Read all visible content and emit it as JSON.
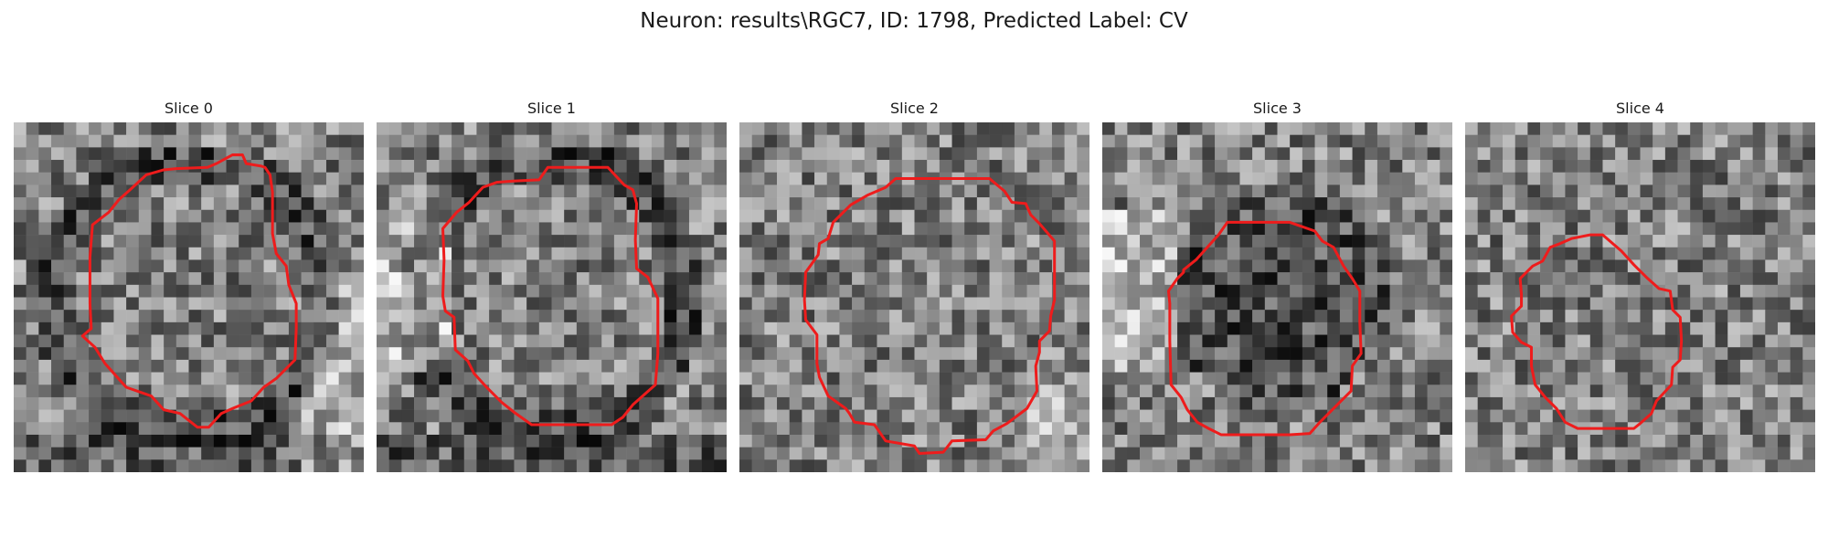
{
  "figure": {
    "title": "Neuron: results\\RGC7, ID: 1798, Predicted Label: CV",
    "contour_color": "#ee1c1c",
    "image_colormap": "gray"
  },
  "panels": [
    {
      "title": "Slice 0",
      "seed": 11,
      "dark_ring": true,
      "bright_corner": "right"
    },
    {
      "title": "Slice 1",
      "seed": 23,
      "dark_ring": true,
      "bright_corner": "left"
    },
    {
      "title": "Slice 2",
      "seed": 37,
      "dark_ring": false,
      "bright_corner": "bottom-right"
    },
    {
      "title": "Slice 3",
      "seed": 41,
      "dark_ring": false,
      "bright_corner": "left"
    },
    {
      "title": "Slice 4",
      "seed": 53,
      "dark_ring": false,
      "bright_corner": "none"
    }
  ]
}
